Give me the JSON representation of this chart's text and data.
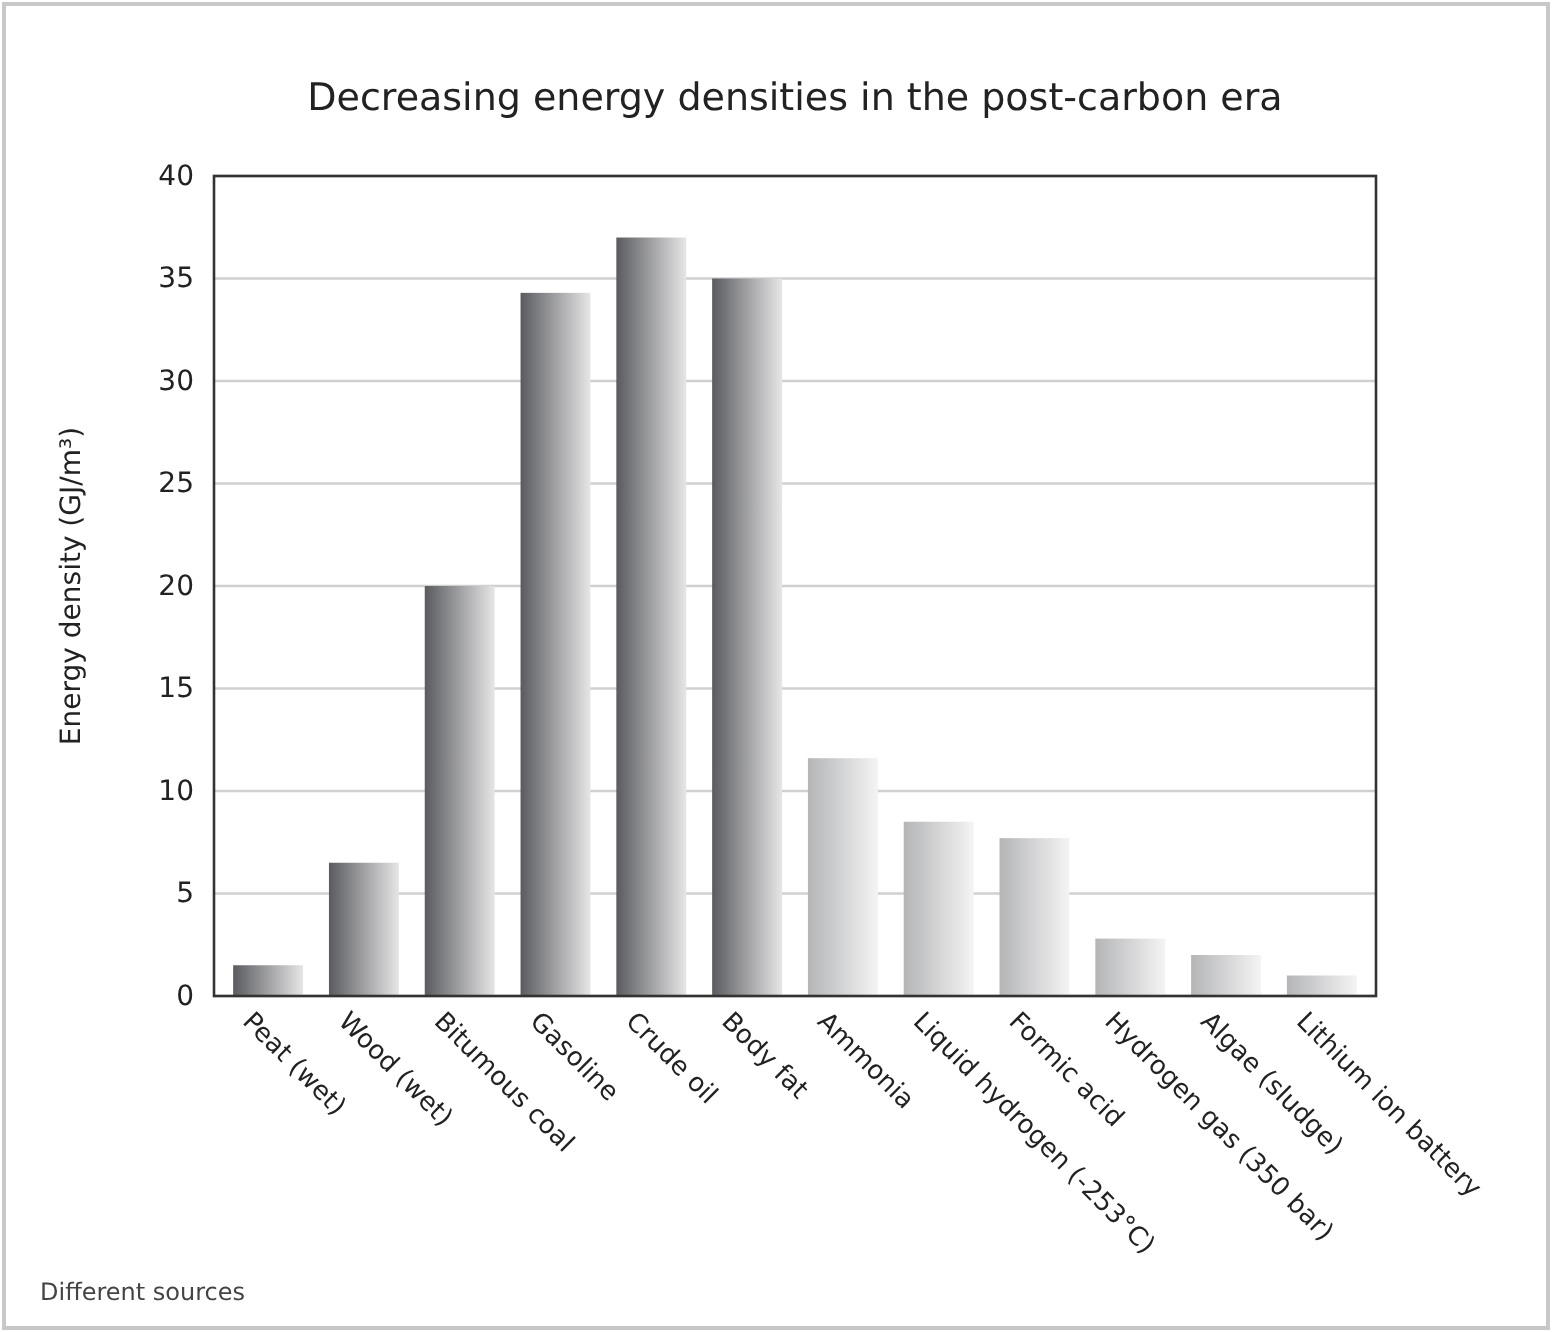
{
  "chart_data": {
    "type": "bar",
    "title": "Decreasing energy densities in the post-carbon era",
    "ylabel": "Energy density (GJ/m³)",
    "categories": [
      "Peat (wet)",
      "Wood (wet)",
      "Bitumous coal",
      "Gasoline",
      "Crude oil",
      "Body fat",
      "Ammonia",
      "Liquid hydrogen (-253°C)",
      "Formic acid",
      "Hydrogen gas (350 bar)",
      "Algae (sludge)",
      "Lithium ion battery"
    ],
    "values": [
      1.5,
      6.5,
      20,
      34.3,
      37,
      35,
      11.6,
      8.5,
      7.7,
      2.8,
      2.0,
      1.0
    ],
    "colors": [
      "#5a5b5f",
      "#5a5b5f",
      "#5a5b5f",
      "#5a5b5f",
      "#5a5b5f",
      "#5a5b5f",
      "#b4b5b7",
      "#b4b5b7",
      "#b4b5b7",
      "#b4b5b7",
      "#b4b5b7",
      "#b4b5b7"
    ],
    "ylim": [
      0,
      40
    ],
    "yticks": [
      0,
      5,
      10,
      15,
      20,
      25,
      30,
      35,
      40
    ],
    "grid": "y",
    "annotations": [
      "Different sources"
    ]
  }
}
